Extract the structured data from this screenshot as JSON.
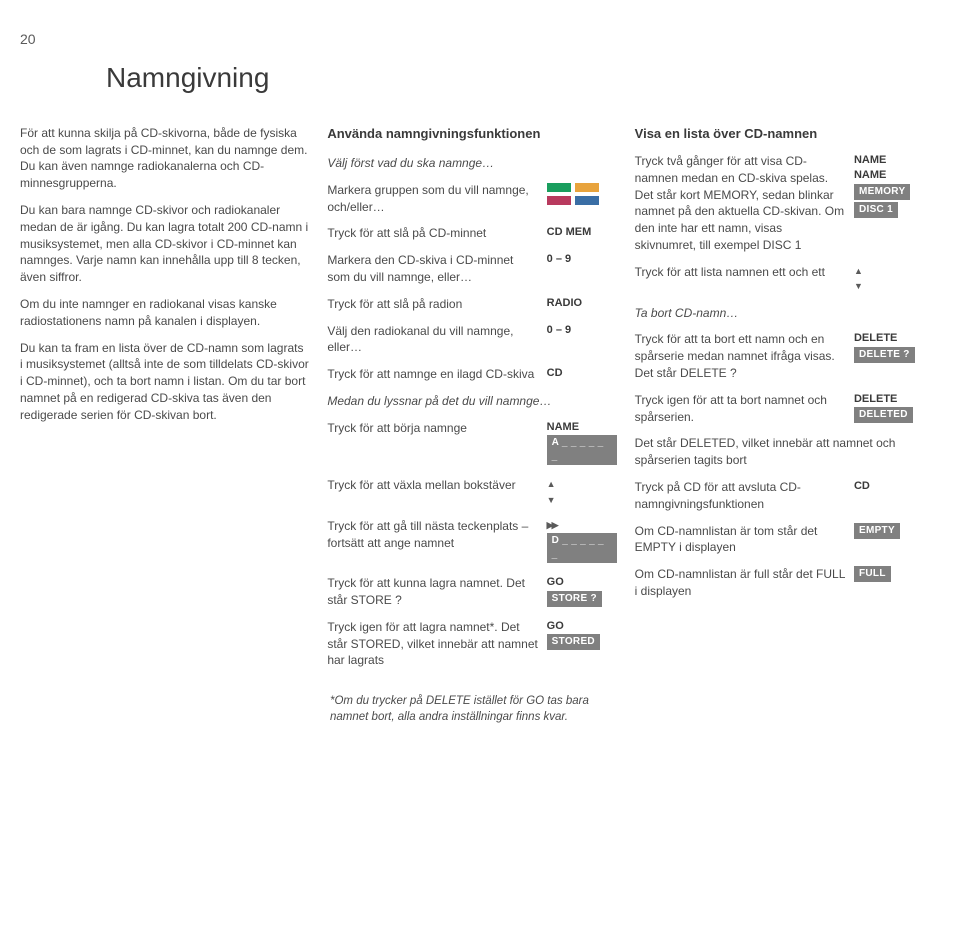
{
  "page_number": "20",
  "title": "Namngivning",
  "col1": {
    "p1": "För att kunna skilja på CD-skivorna, både de fysiska och de som lagrats i CD-minnet, kan du namnge dem. Du kan även namnge radiokanalerna och CD-minnesgrupperna.",
    "p2": "Du kan bara namnge CD-skivor och radiokanaler medan de är igång. Du kan lagra totalt 200 CD-namn i musiksystemet, men alla CD-skivor i CD-minnet kan namnges. Varje namn kan innehålla upp till 8 tecken, även siffror.",
    "p3": "Om du inte namnger en radiokanal visas kanske radiostationens namn på kanalen i displayen.",
    "p4": "Du kan ta fram en lista över de CD-namn som lagrats i musiksystemet (alltså inte de som tilldelats CD-skivor i CD-minnet), och ta bort namn i listan. Om du tar bort namnet på en redigerad CD-skiva tas även den redigerade serien för CD-skivan bort."
  },
  "col2": {
    "heading": "Använda namngivningsfunktionen",
    "intro": "Välj först vad du ska namnge…",
    "r1": {
      "l": "Markera gruppen som du vill namnge, och/eller…"
    },
    "r2": {
      "l": "Tryck för att slå på CD-minnet",
      "r": "CD MEM"
    },
    "r3": {
      "l": "Markera den CD-skiva i CD-minnet som du vill namnge, eller…",
      "r": "0 – 9"
    },
    "r4": {
      "l": "Tryck för att slå på radion",
      "r": "RADIO"
    },
    "r5": {
      "l": "Välj den radiokanal du vill namnge, eller…",
      "r": "0 – 9"
    },
    "r6": {
      "l": "Tryck för att namnge en ilagd CD-skiva",
      "r": "CD"
    },
    "mid": "Medan du lyssnar på det du vill namnge…",
    "r7": {
      "l": "Tryck för att börja namnge",
      "r": "NAME",
      "badge": "A _ _ _ _ _ _"
    },
    "r8": {
      "l": "Tryck för att växla mellan bokstäver"
    },
    "r9": {
      "l": "Tryck för att gå till nästa teckenplats – fortsätt att ange namnet",
      "badge": "D _ _ _ _ _ _"
    },
    "r10": {
      "l": "Tryck för att kunna lagra namnet. Det står STORE ?",
      "r": "GO",
      "badge": "STORE ?"
    },
    "r11": {
      "l": "Tryck igen för att lagra namnet*. Det står STORED, vilket innebär att namnet har lagrats",
      "r": "GO",
      "badge": "STORED"
    }
  },
  "col3": {
    "heading": "Visa en lista över CD-namnen",
    "r1": {
      "l": "Tryck två gånger för att visa CD-namnen medan en CD-skiva spelas. Det står kort MEMORY, sedan blinkar namnet på den aktuella CD-skivan. Om den inte har ett namn, visas skivnumret, till exempel DISC 1",
      "r1": "NAME",
      "r2": "NAME",
      "b1": "MEMORY",
      "b2": "DISC 1"
    },
    "r2": {
      "l": "Tryck för att lista namnen ett och ett"
    },
    "r3h": "Ta bort CD-namn…",
    "r3": {
      "l": "Tryck för att ta bort ett namn och en spårserie medan namnet ifråga visas. Det står DELETE ?",
      "r": "DELETE",
      "b": "DELETE ?"
    },
    "r4": {
      "l": "Tryck igen för att ta bort namnet och spårserien.",
      "r": "DELETE",
      "b": "DELETED"
    },
    "r4b": "Det står DELETED, vilket innebär att namnet och spårserien tagits bort",
    "r5": {
      "l": "Tryck på CD för att avsluta CD-namngivningsfunktionen",
      "r": "CD"
    },
    "r6": {
      "l": "Om CD-namnlistan är tom står det EMPTY i displayen",
      "b": "EMPTY"
    },
    "r7": {
      "l": "Om CD-namnlistan är full står det FULL i displayen",
      "b": "FULL"
    }
  },
  "swatch_colors": [
    "#1a9e5e",
    "#e8a33c",
    "#b83a5e",
    "#3a6ea5"
  ],
  "footnote": "*Om du trycker på DELETE istället för GO tas bara namnet bort, alla andra inställningar finns kvar."
}
